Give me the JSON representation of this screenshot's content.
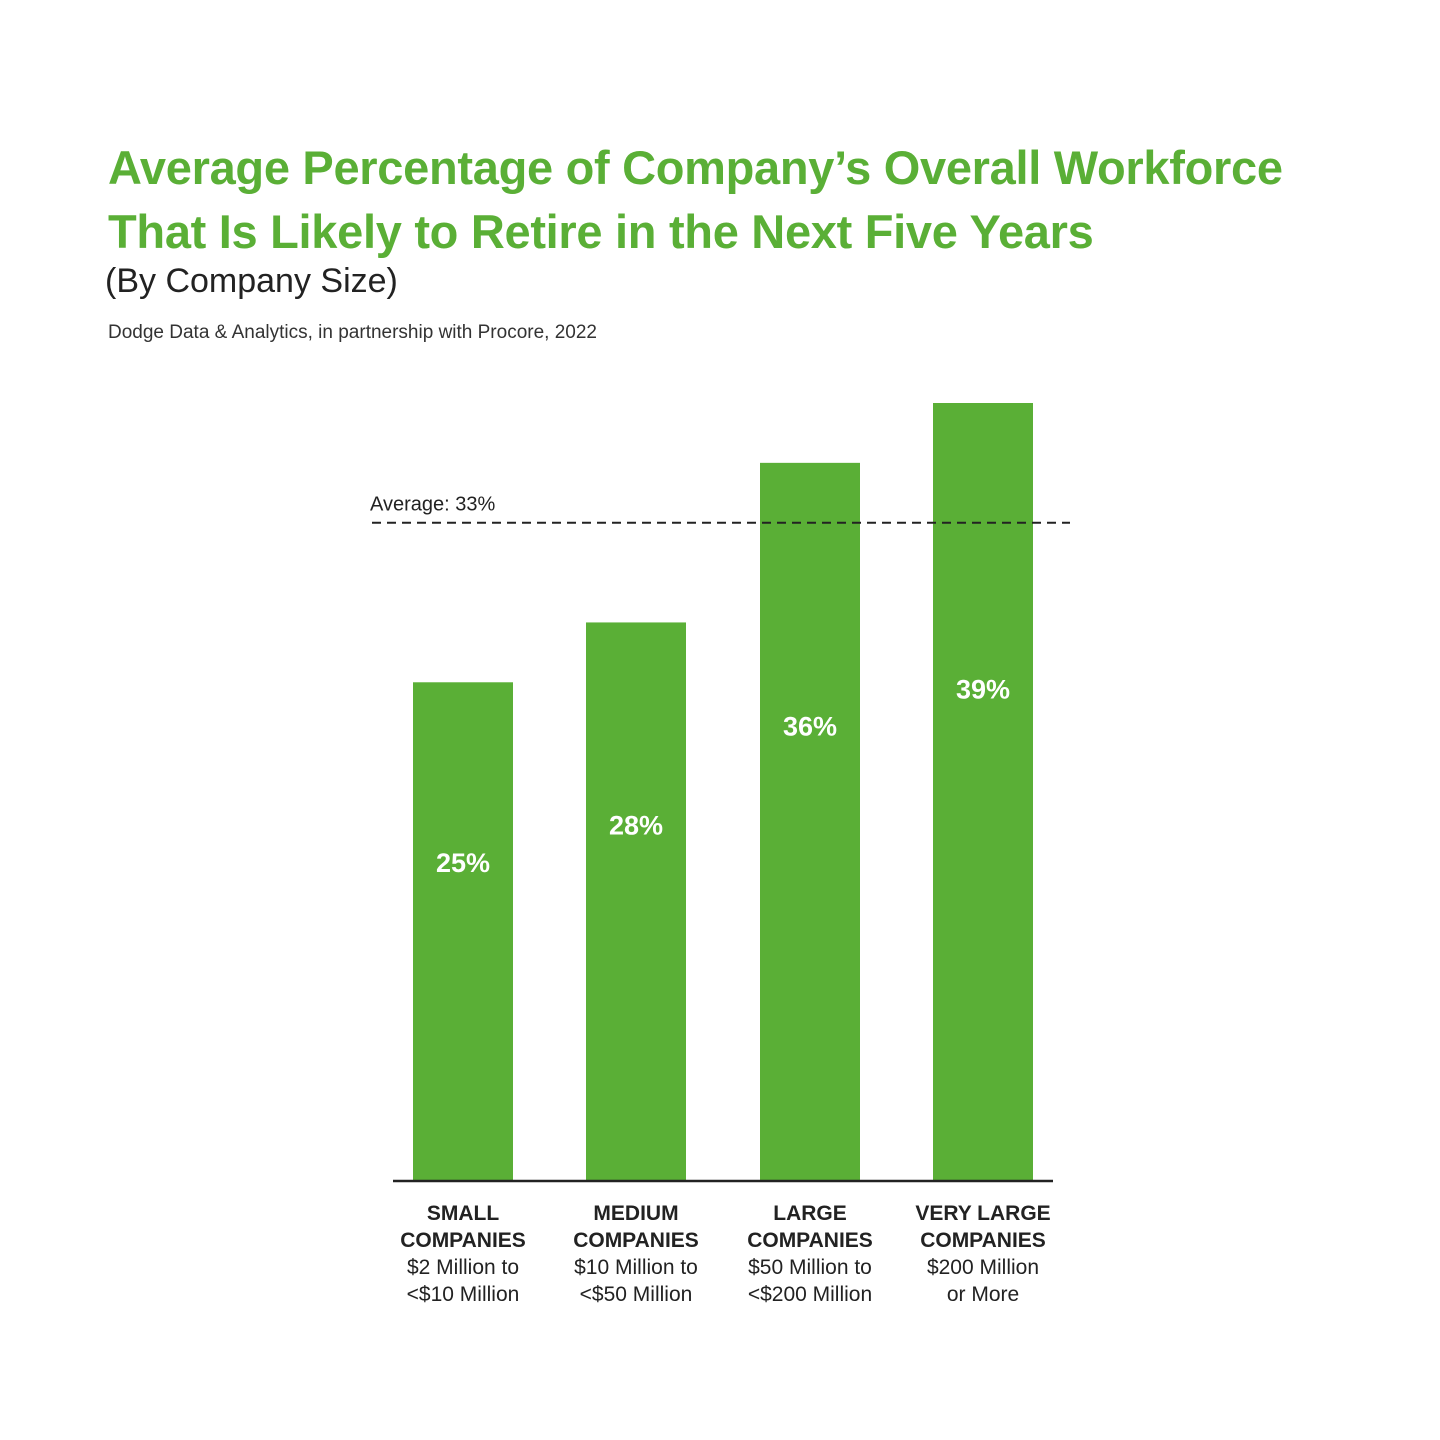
{
  "chart_data": {
    "type": "bar",
    "title_lines": [
      "Average Percentage of Company’s Overall Workforce",
      "That Is Likely to Retire in the Next Five Years"
    ],
    "subtitle": "(By Company Size)",
    "source": "Dodge Data & Analytics, in partnership with Procore, 2022",
    "categories": [
      {
        "name_lines": [
          "SMALL",
          "COMPANIES"
        ],
        "range_lines": [
          "$2 Million to",
          "<$10 Million"
        ]
      },
      {
        "name_lines": [
          "MEDIUM",
          "COMPANIES"
        ],
        "range_lines": [
          "$10 Million to",
          "<$50 Million"
        ]
      },
      {
        "name_lines": [
          "LARGE",
          "COMPANIES"
        ],
        "range_lines": [
          "$50 Million to",
          "<$200 Million"
        ]
      },
      {
        "name_lines": [
          "VERY LARGE",
          "COMPANIES"
        ],
        "range_lines": [
          "$200 Million",
          "or More"
        ]
      }
    ],
    "values": [
      25,
      28,
      36,
      39
    ],
    "value_labels": [
      "25%",
      "28%",
      "36%",
      "39%"
    ],
    "average": {
      "value": 33,
      "label": "Average: 33%"
    },
    "ylim": [
      0,
      39
    ],
    "grid": false,
    "bar_color": "#5aaf36",
    "value_label_color": "#ffffff",
    "average_line_color": "#222222"
  }
}
